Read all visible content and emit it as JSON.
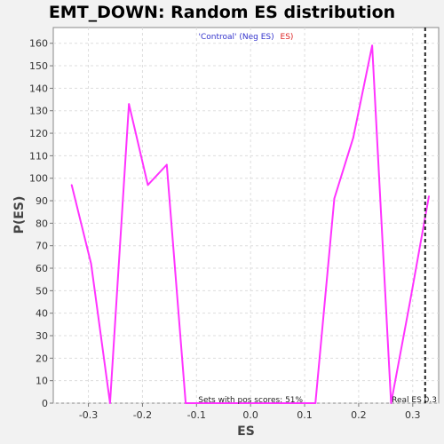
{
  "chart_data": {
    "type": "line",
    "title": "EMT_DOWN: Random ES distribution",
    "xlabel": "ES",
    "ylabel": "P(ES)",
    "xlim": [
      -0.365,
      0.348
    ],
    "ylim": [
      0,
      167
    ],
    "x_ticks": [
      -0.3,
      -0.2,
      -0.1,
      0.0,
      0.1,
      0.2,
      0.3
    ],
    "x_tick_labels": [
      "-0.3",
      "-0.2",
      "-0.1",
      "0.0",
      "0.1",
      "0.2",
      "0.3"
    ],
    "y_ticks": [
      0,
      10,
      20,
      30,
      40,
      50,
      60,
      70,
      80,
      90,
      100,
      110,
      120,
      130,
      140,
      150,
      160
    ],
    "grid": true,
    "legend": {
      "position": "top-center",
      "parts": [
        {
          "text": "'Controal' (Neg ES)",
          "color": "#3333cc"
        },
        {
          "text": "ES)",
          "color": "#dd2222"
        }
      ]
    },
    "series": [
      {
        "color": "#ff33ff",
        "x": [
          -0.331,
          -0.295,
          -0.26,
          -0.225,
          -0.19,
          -0.155,
          -0.12,
          -0.085,
          -0.05,
          -0.015,
          0.02,
          0.055,
          0.09,
          0.12,
          0.155,
          0.19,
          0.225,
          0.26,
          0.295,
          0.33
        ],
        "y": [
          97,
          62,
          0,
          133,
          97,
          106,
          0,
          0,
          0,
          0,
          0,
          0,
          0,
          0,
          91,
          118,
          159,
          0,
          45,
          92
        ]
      }
    ],
    "vline": {
      "x": 0.323,
      "label": "Real ES 0.3",
      "style": "dashed",
      "color": "#222222"
    },
    "annotation": {
      "text": "Sets with pos scores: 51%",
      "x": 0.0,
      "y": 0
    }
  }
}
